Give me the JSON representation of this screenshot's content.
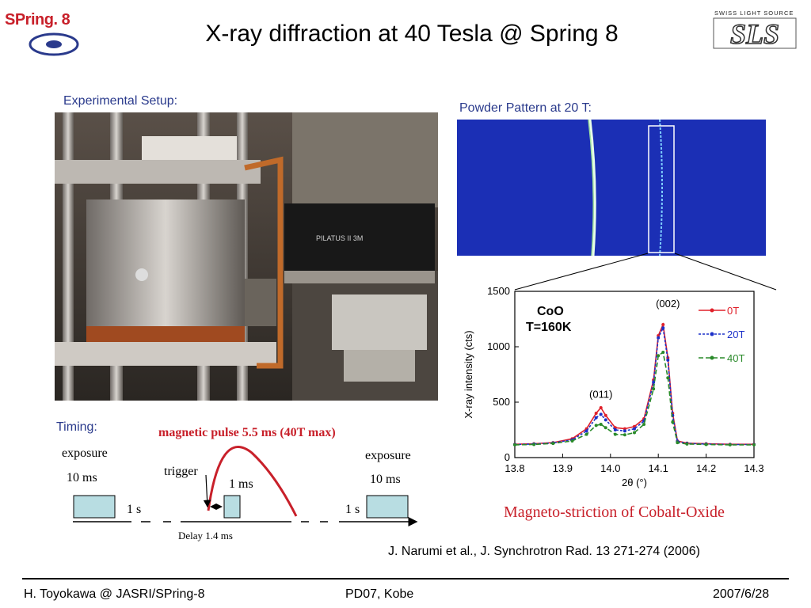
{
  "slide": {
    "title": "X-ray diffraction at 40 Tesla @ Spring 8",
    "left_logo_text": "SPring. 8",
    "right_logo_tag": "SWISS LIGHT SOURCE",
    "right_logo_text": "SLS"
  },
  "setup": {
    "label": "Experimental Setup:",
    "detector_label": "PILATUS II 3M"
  },
  "powder": {
    "label": "Powder Pattern at 20 T:"
  },
  "timing": {
    "label": "Timing:",
    "pulse_label": "magnetic pulse 5.5 ms (40T max)",
    "exposure_left": "exposure",
    "exposure_left_time": "10 ms",
    "exposure_right": "exposure",
    "exposure_right_time": "10 ms",
    "trigger": "trigger",
    "pulse_exposure": "1 ms",
    "gap_left": "1 s",
    "gap_right": "1 s",
    "delay": "Delay 1.4 ms"
  },
  "chart_data": {
    "type": "line",
    "xlabel": "2θ (°)",
    "ylabel": "X-ray intensity (cts)",
    "xlim": [
      13.8,
      14.3
    ],
    "ylim": [
      0,
      1500
    ],
    "xticks": [
      "13.8",
      "13.9",
      "14.0",
      "14.1",
      "14.2",
      "14.3"
    ],
    "yticks": [
      "0",
      "500",
      "1000",
      "1500"
    ],
    "annotations": [
      "CoO",
      "T=160K",
      "(002)",
      "(011)"
    ],
    "legend_position": "top-right",
    "series": [
      {
        "name": "0T",
        "color": "#e0202a",
        "x": [
          13.8,
          13.84,
          13.88,
          13.92,
          13.95,
          13.97,
          13.98,
          13.99,
          14.01,
          14.03,
          14.05,
          14.07,
          14.09,
          14.1,
          14.11,
          14.12,
          14.13,
          14.14,
          14.16,
          14.2,
          14.25,
          14.3
        ],
        "y": [
          120,
          125,
          135,
          170,
          260,
          400,
          450,
          380,
          270,
          260,
          280,
          350,
          700,
          1100,
          1200,
          900,
          400,
          150,
          130,
          125,
          120,
          120
        ]
      },
      {
        "name": "20T",
        "color": "#1c30c8",
        "x": [
          13.8,
          13.84,
          13.88,
          13.92,
          13.95,
          13.97,
          13.98,
          13.99,
          14.01,
          14.03,
          14.05,
          14.07,
          14.09,
          14.1,
          14.11,
          14.12,
          14.13,
          14.14,
          14.16,
          14.2,
          14.25,
          14.3
        ],
        "y": [
          118,
          122,
          132,
          160,
          240,
          360,
          390,
          340,
          250,
          240,
          260,
          330,
          680,
          1080,
          1170,
          880,
          380,
          145,
          128,
          122,
          118,
          118
        ]
      },
      {
        "name": "40T",
        "color": "#2a8a2a",
        "x": [
          13.8,
          13.84,
          13.88,
          13.92,
          13.95,
          13.97,
          13.98,
          13.99,
          14.01,
          14.03,
          14.05,
          14.07,
          14.09,
          14.1,
          14.11,
          14.12,
          14.13,
          14.14,
          14.16,
          14.2,
          14.25,
          14.3
        ],
        "y": [
          115,
          118,
          128,
          150,
          210,
          290,
          300,
          270,
          210,
          205,
          225,
          300,
          620,
          920,
          950,
          720,
          320,
          135,
          122,
          118,
          115,
          115
        ]
      }
    ]
  },
  "caption": "Magneto-striction of Cobalt-Oxide",
  "reference": "J. Narumi et al., J. Synchrotron Rad. 13 271-274 (2006)",
  "footer": {
    "left": "H. Toyokawa @ JASRI/SPring-8",
    "center": "PD07, Kobe",
    "right": "2007/6/28"
  }
}
